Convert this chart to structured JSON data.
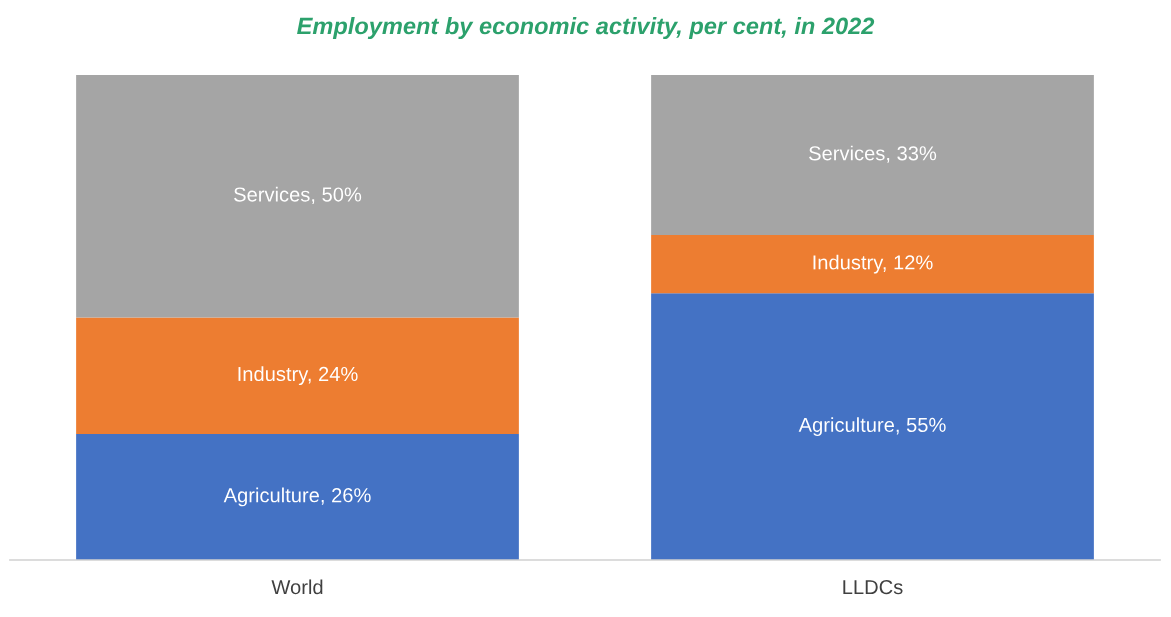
{
  "chart_data": {
    "type": "bar",
    "title": "Employment by economic activity, per cent, in 2022",
    "categories": [
      "World",
      "LLDCs"
    ],
    "stacked": true,
    "legend": false,
    "grid": false,
    "series": [
      {
        "color": "#4472c4",
        "values": [
          26,
          55
        ],
        "value_labels": [
          "Agriculture, 26%",
          "Agriculture, 55%"
        ]
      },
      {
        "color": "#ed7d31",
        "values": [
          24,
          12
        ],
        "value_labels": [
          "Industry, 24%",
          "Industry, 12%"
        ]
      },
      {
        "color": "#a5a5a5",
        "values": [
          50,
          33
        ],
        "value_labels": [
          "Services, 50%",
          "Services, 33%"
        ]
      }
    ]
  }
}
